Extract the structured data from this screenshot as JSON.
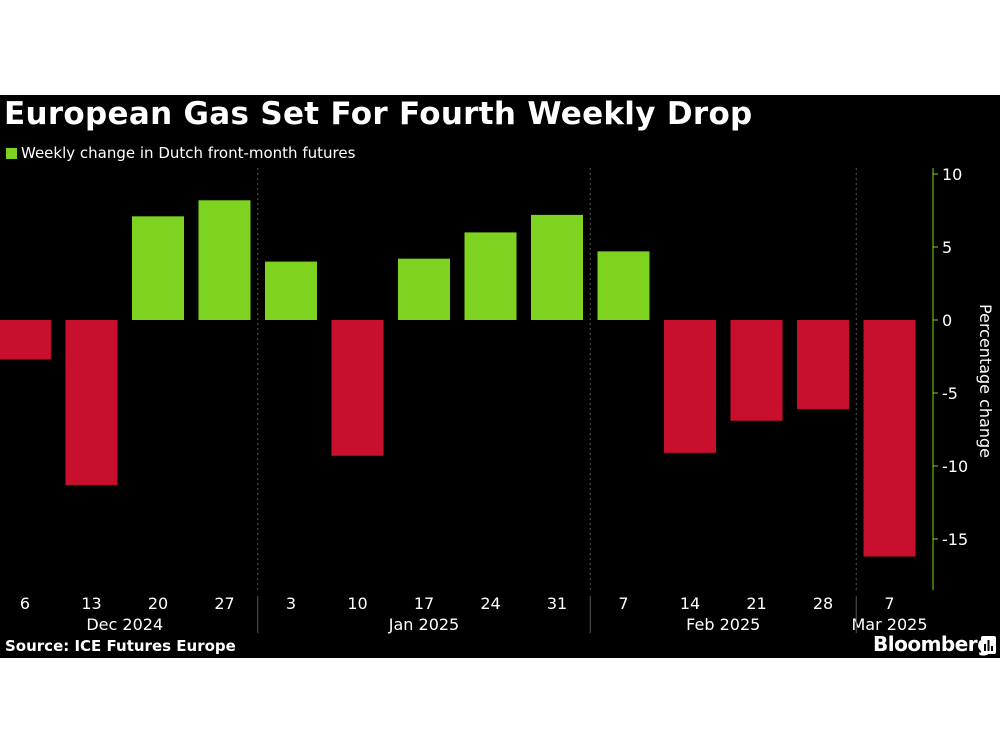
{
  "title": "European Gas Set For Fourth Weekly Drop",
  "legend": {
    "label": "Weekly change in Dutch front-month futures",
    "color": "#7ed321"
  },
  "source": "Source: ICE Futures Europe",
  "brand": "Bloomberg",
  "chart_data": {
    "type": "bar",
    "categories": [
      "6",
      "13",
      "20",
      "27",
      "3",
      "10",
      "17",
      "24",
      "31",
      "7",
      "14",
      "21",
      "28",
      "7"
    ],
    "values": [
      -2.7,
      -11.3,
      7.1,
      8.2,
      4.0,
      -9.3,
      4.2,
      6.0,
      7.2,
      4.7,
      -9.1,
      -6.9,
      -6.1,
      -16.2
    ],
    "month_labels": [
      {
        "label": "Dec 2024",
        "start": 0,
        "end": 3
      },
      {
        "label": "Jan 2025",
        "start": 4,
        "end": 8
      },
      {
        "label": "Feb 2025",
        "start": 9,
        "end": 12
      },
      {
        "label": "Mar 2025",
        "start": 13,
        "end": 13
      }
    ],
    "ylabel": "Percentage change",
    "yticks": [
      10,
      5,
      0,
      -5,
      -10,
      -15
    ],
    "ylim": [
      -18,
      10.5
    ],
    "axis_side": "right",
    "positive_color": "#7ed321",
    "negative_color": "#c8102e",
    "grid": "vertical-dashed-at-month-boundaries"
  }
}
